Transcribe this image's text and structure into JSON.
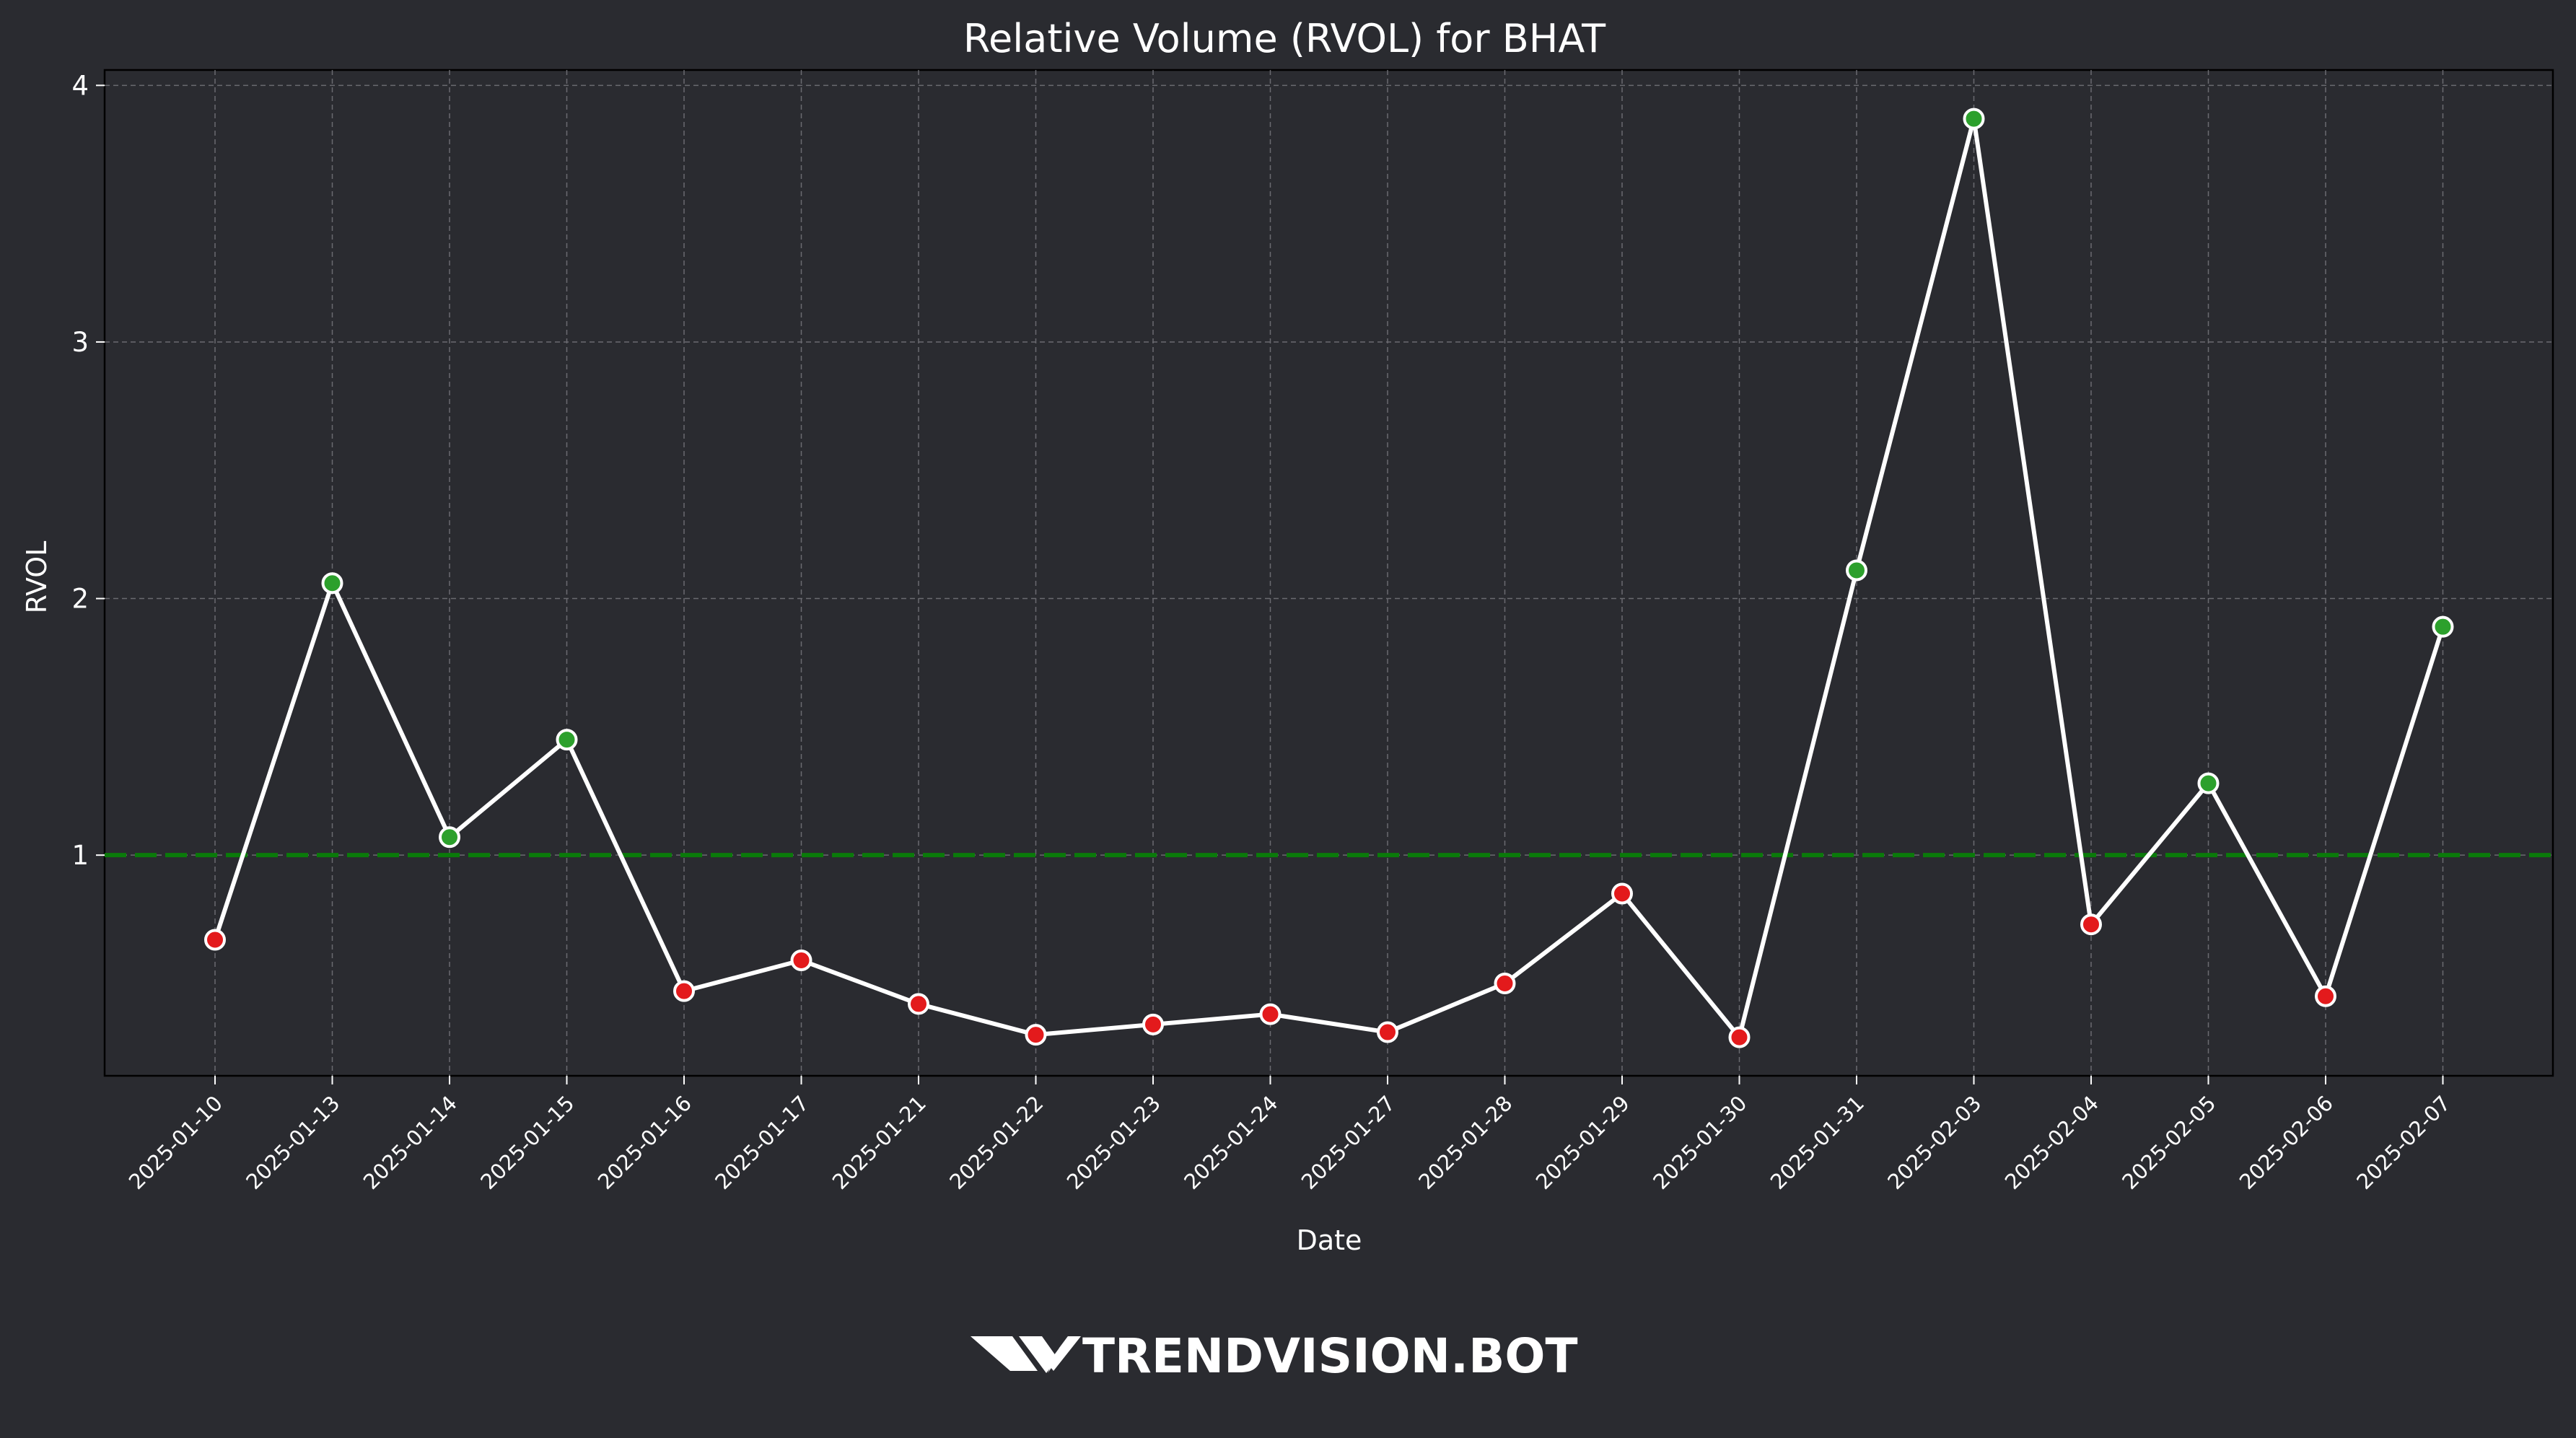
{
  "chart_data": {
    "type": "line",
    "title": "Relative Volume (RVOL) for BHAT",
    "xlabel": "Date",
    "ylabel": "RVOL",
    "categories": [
      "2025-01-10",
      "2025-01-13",
      "2025-01-14",
      "2025-01-15",
      "2025-01-16",
      "2025-01-17",
      "2025-01-21",
      "2025-01-22",
      "2025-01-23",
      "2025-01-24",
      "2025-01-27",
      "2025-01-28",
      "2025-01-29",
      "2025-01-30",
      "2025-01-31",
      "2025-02-03",
      "2025-02-04",
      "2025-02-05",
      "2025-02-06",
      "2025-02-07"
    ],
    "series": [
      {
        "values": [
          0.67,
          2.06,
          1.07,
          1.45,
          0.47,
          0.59,
          0.42,
          0.3,
          0.34,
          0.38,
          0.31,
          0.5,
          0.85,
          0.29,
          2.11,
          3.87,
          0.73,
          1.28,
          0.45,
          1.89
        ],
        "color": "#ffffff"
      }
    ],
    "threshold": {
      "value": 1,
      "color": "#0a7a0a",
      "style": "dashed"
    },
    "marker_colors": {
      "above": "#2ca02c",
      "below": "#e31a1c"
    },
    "yticks": [
      1,
      2,
      3,
      4
    ],
    "ylim": [
      0.14,
      4.06
    ],
    "grid": true,
    "legend": "none"
  },
  "watermark": {
    "text": "TRENDVISION.BOT",
    "logo": "tv-logo-icon"
  }
}
